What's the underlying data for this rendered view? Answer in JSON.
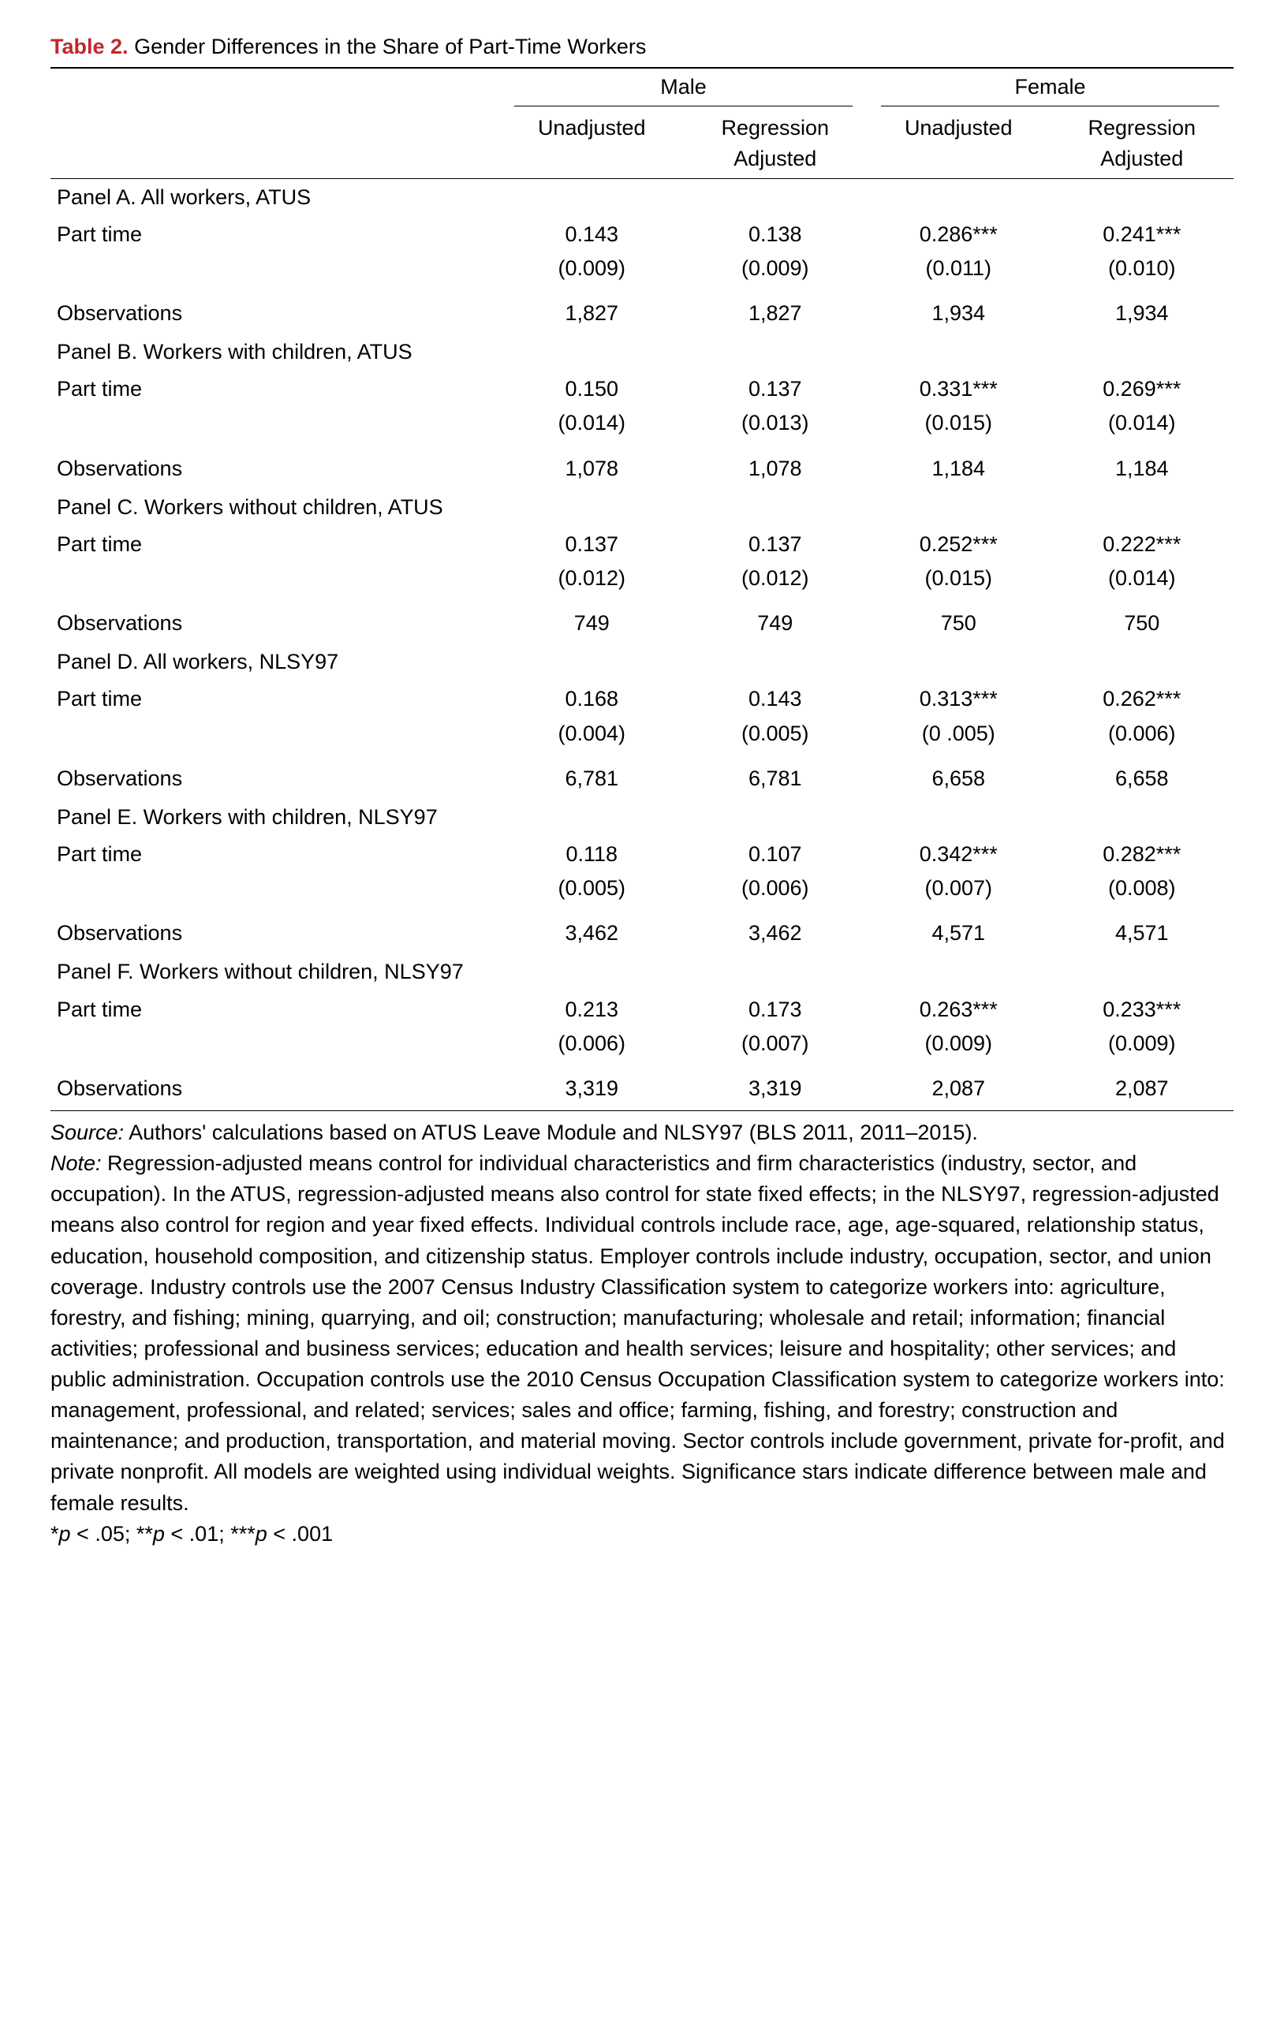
{
  "title": {
    "label": "Table 2.",
    "desc": "Gender Differences in the Share of Part-Time Workers"
  },
  "column_groups": {
    "male": "Male",
    "female": "Female"
  },
  "subheaders": {
    "unadjusted": "Unadjusted",
    "regadj_l1": "Regression",
    "regadj_l2": "Adjusted"
  },
  "row_labels": {
    "part_time": "Part time",
    "observations": "Observations"
  },
  "panels": [
    {
      "title": "Panel A. All workers, ATUS",
      "part_time": {
        "m_un": "0.143",
        "m_adj": "0.138",
        "f_un": "0.286***",
        "f_adj": "0.241***"
      },
      "part_time_se": {
        "m_un": "(0.009)",
        "m_adj": "(0.009)",
        "f_un": "(0.011)",
        "f_adj": "(0.010)"
      },
      "obs": {
        "m_un": "1,827",
        "m_adj": "1,827",
        "f_un": "1,934",
        "f_adj": "1,934"
      }
    },
    {
      "title": "Panel B. Workers with children, ATUS",
      "part_time": {
        "m_un": "0.150",
        "m_adj": "0.137",
        "f_un": "0.331***",
        "f_adj": "0.269***"
      },
      "part_time_se": {
        "m_un": "(0.014)",
        "m_adj": "(0.013)",
        "f_un": "(0.015)",
        "f_adj": "(0.014)"
      },
      "obs": {
        "m_un": "1,078",
        "m_adj": "1,078",
        "f_un": "1,184",
        "f_adj": "1,184"
      }
    },
    {
      "title": "Panel C. Workers without children, ATUS",
      "part_time": {
        "m_un": "0.137",
        "m_adj": "0.137",
        "f_un": "0.252***",
        "f_adj": "0.222***"
      },
      "part_time_se": {
        "m_un": "(0.012)",
        "m_adj": "(0.012)",
        "f_un": "(0.015)",
        "f_adj": "(0.014)"
      },
      "obs": {
        "m_un": "749",
        "m_adj": "749",
        "f_un": "750",
        "f_adj": "750"
      }
    },
    {
      "title": "Panel D. All workers, NLSY97",
      "part_time": {
        "m_un": "0.168",
        "m_adj": "0.143",
        "f_un": "0.313***",
        "f_adj": "0.262***"
      },
      "part_time_se": {
        "m_un": "(0.004)",
        "m_adj": "(0.005)",
        "f_un": "(0 .005)",
        "f_adj": "(0.006)"
      },
      "obs": {
        "m_un": "6,781",
        "m_adj": "6,781",
        "f_un": "6,658",
        "f_adj": "6,658"
      }
    },
    {
      "title": "Panel E. Workers with children, NLSY97",
      "part_time": {
        "m_un": "0.118",
        "m_adj": "0.107",
        "f_un": "0.342***",
        "f_adj": "0.282***"
      },
      "part_time_se": {
        "m_un": "(0.005)",
        "m_adj": "(0.006)",
        "f_un": "(0.007)",
        "f_adj": "(0.008)"
      },
      "obs": {
        "m_un": "3,462",
        "m_adj": "3,462",
        "f_un": "4,571",
        "f_adj": "4,571"
      }
    },
    {
      "title": "Panel F. Workers without children, NLSY97",
      "part_time": {
        "m_un": "0.213",
        "m_adj": "0.173",
        "f_un": "0.263***",
        "f_adj": "0.233***"
      },
      "part_time_se": {
        "m_un": "(0.006)",
        "m_adj": "(0.007)",
        "f_un": "(0.009)",
        "f_adj": "(0.009)"
      },
      "obs": {
        "m_un": "3,319",
        "m_adj": "3,319",
        "f_un": "2,087",
        "f_adj": "2,087"
      }
    }
  ],
  "notes": {
    "source_label": "Source:",
    "source_text": " Authors' calculations based on ATUS Leave Module and NLSY97 (BLS 2011, 2011–2015).",
    "note_label": "Note:",
    "note_text": " Regression-adjusted means control for individual characteristics and firm characteristics (industry, sector, and occupation). In the ATUS, regression-adjusted means also control for state fixed effects; in the NLSY97, regression-adjusted means also control for region and year fixed effects. Individual controls include race, age, age-squared, relationship status, education, household composition, and citizenship status. Employer controls include industry, occupation, sector, and union coverage. Industry controls use the 2007 Census Industry Classification system to categorize workers into: agriculture, forestry, and fishing; mining, quarrying, and oil; construction; manufacturing; wholesale and retail; information; financial activities; professional and business services; education and health services; leisure and hospitality; other services; and public administration. Occupation controls use the 2010 Census Occupation Classification system to categorize workers into: management, professional, and related; services; sales and office; farming, fishing, and forestry; construction and maintenance; and production, transportation, and material moving. Sector controls include government, private for-profit, and private nonprofit. All models are weighted using individual weights. Significance stars indicate difference between male and female results.",
    "sig_prefix": "*",
    "sig_p": "p",
    "sig_1": " < .05; **",
    "sig_2": " < .01; ***",
    "sig_3": " < .001"
  }
}
